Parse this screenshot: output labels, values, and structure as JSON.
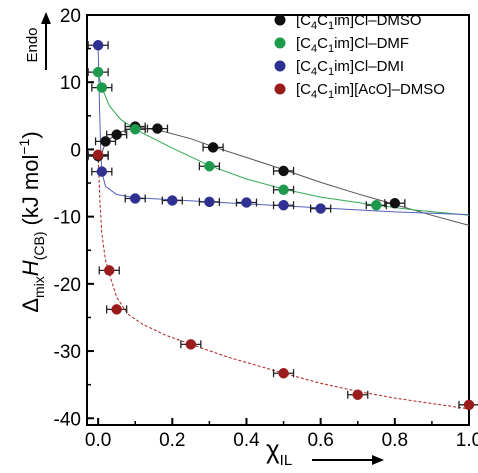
{
  "chart_data": {
    "type": "scatter",
    "title": "",
    "xlabel": {
      "main": "χ",
      "sub": "IL"
    },
    "ylabel": {
      "delta": "Δ",
      "delta_sub": "mix",
      "main": "H",
      "main_sub": "(CB)",
      "units": "(kJ mol",
      "units_sup": "−1",
      "units_close": ")"
    },
    "xlim": [
      -0.03,
      1.0
    ],
    "ylim": [
      -41,
      20
    ],
    "x_ticks": [
      "0.0",
      "0.2",
      "0.4",
      "0.6",
      "0.8",
      "1.0"
    ],
    "x_tick_values": [
      0.0,
      0.2,
      0.4,
      0.6,
      0.8,
      1.0
    ],
    "y_ticks": [
      "20",
      "10",
      "0",
      "-10",
      "-20",
      "-30",
      "-40"
    ],
    "y_tick_values": [
      20,
      10,
      0,
      -10,
      -20,
      -30,
      -40
    ],
    "annotation_endo": "Endo",
    "legend_position": "top-right",
    "series": [
      {
        "name_parts": [
          "[C",
          "4",
          "C",
          "1",
          "im]Cl–DMSO"
        ],
        "color": "#111111",
        "line_style": "solid",
        "line_color": "#555555",
        "points": [
          [
            0.0,
            -1.0
          ],
          [
            0.02,
            1.2
          ],
          [
            0.05,
            2.2
          ],
          [
            0.1,
            3.4
          ],
          [
            0.16,
            3.1
          ],
          [
            0.31,
            0.3
          ],
          [
            0.5,
            -3.2
          ],
          [
            0.8,
            -8.0
          ]
        ],
        "fit": [
          [
            0.0,
            -2.0
          ],
          [
            0.02,
            1.0
          ],
          [
            0.05,
            2.4
          ],
          [
            0.1,
            3.3
          ],
          [
            0.16,
            2.9
          ],
          [
            0.25,
            1.6
          ],
          [
            0.31,
            0.4
          ],
          [
            0.4,
            -1.2
          ],
          [
            0.5,
            -3.0
          ],
          [
            0.6,
            -4.9
          ],
          [
            0.7,
            -6.6
          ],
          [
            0.8,
            -8.2
          ],
          [
            0.9,
            -9.8
          ],
          [
            1.0,
            -11.3
          ]
        ]
      },
      {
        "name_parts": [
          "[C",
          "4",
          "C",
          "1",
          "im]Cl–DMF"
        ],
        "color": "#1e9a4c",
        "line_style": "solid",
        "line_color": "#33aa55",
        "points": [
          [
            0.0,
            11.5
          ],
          [
            0.01,
            9.2
          ],
          [
            0.1,
            3.0
          ],
          [
            0.3,
            -2.5
          ],
          [
            0.5,
            -6.0
          ],
          [
            0.75,
            -8.3
          ]
        ],
        "fit": [
          [
            0.0,
            11.5
          ],
          [
            0.01,
            9.2
          ],
          [
            0.03,
            6.5
          ],
          [
            0.06,
            4.5
          ],
          [
            0.1,
            3.0
          ],
          [
            0.15,
            1.6
          ],
          [
            0.2,
            0.2
          ],
          [
            0.3,
            -2.4
          ],
          [
            0.4,
            -4.4
          ],
          [
            0.5,
            -5.9
          ],
          [
            0.6,
            -7.1
          ],
          [
            0.75,
            -8.3
          ],
          [
            0.85,
            -9.0
          ],
          [
            1.0,
            -9.8
          ]
        ]
      },
      {
        "name_parts": [
          "[C",
          "4",
          "C",
          "1",
          "im]Cl–DMI"
        ],
        "color": "#2e3192",
        "line_style": "solid",
        "line_color": "#5560b8",
        "points": [
          [
            0.0,
            15.5
          ],
          [
            0.01,
            -3.3
          ],
          [
            0.1,
            -7.3
          ],
          [
            0.2,
            -7.6
          ],
          [
            0.3,
            -7.8
          ],
          [
            0.4,
            -7.9
          ],
          [
            0.5,
            -8.3
          ],
          [
            0.6,
            -8.8
          ]
        ],
        "fit": [
          [
            0.0,
            15.5
          ],
          [
            0.003,
            8.0
          ],
          [
            0.007,
            0.0
          ],
          [
            0.01,
            -3.3
          ],
          [
            0.02,
            -5.5
          ],
          [
            0.05,
            -6.7
          ],
          [
            0.1,
            -7.2
          ],
          [
            0.2,
            -7.5
          ],
          [
            0.3,
            -7.8
          ],
          [
            0.4,
            -8.1
          ],
          [
            0.5,
            -8.4
          ],
          [
            0.6,
            -8.7
          ],
          [
            0.7,
            -9.0
          ],
          [
            0.8,
            -9.3
          ],
          [
            0.9,
            -9.5
          ],
          [
            1.0,
            -9.7
          ]
        ]
      },
      {
        "name_parts": [
          "[C",
          "4",
          "C",
          "1",
          "im][AcO]–DMSO"
        ],
        "color": "#9b1c1c",
        "line_style": "dashed",
        "line_color": "#b22222",
        "points": [
          [
            0.0,
            -0.8
          ],
          [
            0.03,
            -18.0
          ],
          [
            0.05,
            -23.8
          ],
          [
            0.25,
            -29.0
          ],
          [
            0.5,
            -33.3
          ],
          [
            0.7,
            -36.5
          ],
          [
            1.0,
            -38.0
          ]
        ],
        "fit": [
          [
            0.0,
            -0.8
          ],
          [
            0.005,
            -8.0
          ],
          [
            0.01,
            -12.5
          ],
          [
            0.02,
            -16.5
          ],
          [
            0.03,
            -18.5
          ],
          [
            0.05,
            -22.0
          ],
          [
            0.08,
            -24.5
          ],
          [
            0.12,
            -26.0
          ],
          [
            0.18,
            -27.6
          ],
          [
            0.25,
            -29.0
          ],
          [
            0.35,
            -30.9
          ],
          [
            0.5,
            -33.3
          ],
          [
            0.6,
            -34.8
          ],
          [
            0.7,
            -36.0
          ],
          [
            0.8,
            -37.0
          ],
          [
            0.9,
            -37.8
          ],
          [
            1.0,
            -38.6
          ]
        ]
      }
    ]
  }
}
